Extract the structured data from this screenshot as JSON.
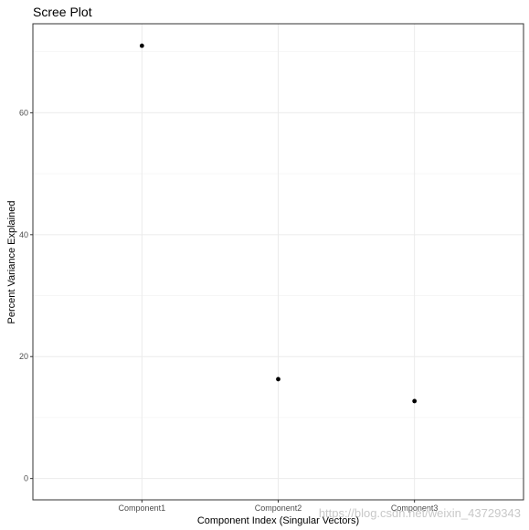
{
  "chart_data": {
    "type": "scatter",
    "title": "Scree Plot",
    "xlabel": "Component Index (Singular Vectors)",
    "ylabel": "Percent Variance Explained",
    "categories": [
      "Component1",
      "Component2",
      "Component3"
    ],
    "values": [
      71.0,
      16.3,
      12.7
    ],
    "ylim": [
      -3.5,
      74.6
    ],
    "yticks": [
      0,
      20,
      40,
      60
    ],
    "grid": true,
    "legend": "none",
    "point_color": "#000000"
  },
  "watermark": "https://blog.csdn.net/weixin_43729343"
}
